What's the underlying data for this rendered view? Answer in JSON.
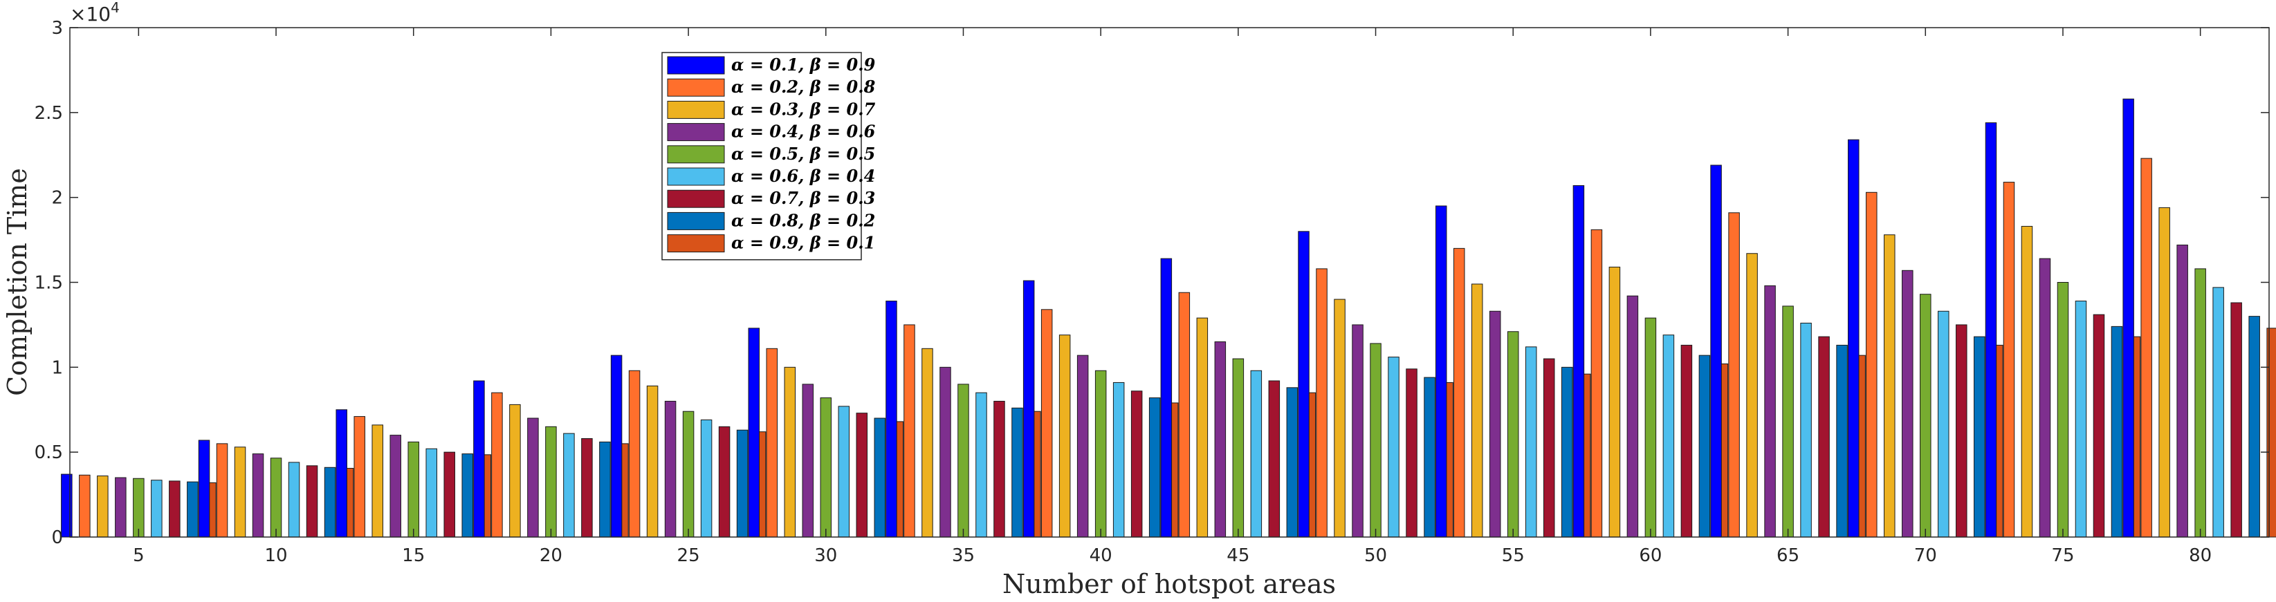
{
  "chart_data": {
    "type": "bar",
    "xlabel": "Number of hotspot areas",
    "ylabel": "Completion Time",
    "y_exponent_label": "×10",
    "y_exponent_power": "4",
    "y_scale_factor": 10000,
    "ylim": [
      0,
      30000
    ],
    "yticks": [
      0,
      5000,
      10000,
      15000,
      20000,
      25000,
      30000
    ],
    "ytick_labels": [
      "0",
      "0.5",
      "1",
      "1.5",
      "2",
      "2.5",
      "3"
    ],
    "categories": [
      "5",
      "10",
      "15",
      "20",
      "25",
      "30",
      "35",
      "40",
      "45",
      "50",
      "55",
      "60",
      "65",
      "70",
      "75",
      "80"
    ],
    "legend_position": "top-left",
    "grid": false,
    "series": [
      {
        "name": "α = 0.1, β = 0.9",
        "color": "#0000FF",
        "values": [
          3700,
          5700,
          7500,
          9200,
          10700,
          12300,
          13900,
          15100,
          16400,
          18000,
          19500,
          20700,
          21900,
          23400,
          24400,
          25800
        ]
      },
      {
        "name": "α = 0.2, β = 0.8",
        "color": "#FF6F2C",
        "values": [
          3650,
          5500,
          7100,
          8500,
          9800,
          11100,
          12500,
          13400,
          14400,
          15800,
          17000,
          18100,
          19100,
          20300,
          20900,
          22300
        ]
      },
      {
        "name": "α = 0.3, β = 0.7",
        "color": "#EDB120",
        "values": [
          3600,
          5300,
          6600,
          7800,
          8900,
          10000,
          11100,
          11900,
          12900,
          14000,
          14900,
          15900,
          16700,
          17800,
          18300,
          19400
        ]
      },
      {
        "name": "α = 0.4, β = 0.6",
        "color": "#7E2F8E",
        "values": [
          3500,
          4900,
          6000,
          7000,
          8000,
          9000,
          10000,
          10700,
          11500,
          12500,
          13300,
          14200,
          14800,
          15700,
          16400,
          17200
        ]
      },
      {
        "name": "α = 0.5, β = 0.5",
        "color": "#77AC30",
        "values": [
          3450,
          4650,
          5600,
          6500,
          7400,
          8200,
          9000,
          9800,
          10500,
          11400,
          12100,
          12900,
          13600,
          14300,
          15000,
          15800
        ]
      },
      {
        "name": "α = 0.6, β = 0.4",
        "color": "#4DBEEE",
        "values": [
          3350,
          4400,
          5200,
          6100,
          6900,
          7700,
          8500,
          9100,
          9800,
          10600,
          11200,
          11900,
          12600,
          13300,
          13900,
          14700
        ]
      },
      {
        "name": "α = 0.7, β = 0.3",
        "color": "#A2142F",
        "values": [
          3300,
          4200,
          5000,
          5800,
          6500,
          7300,
          8000,
          8600,
          9200,
          9900,
          10500,
          11300,
          11800,
          12500,
          13100,
          13800
        ]
      },
      {
        "name": "α = 0.8, β = 0.2",
        "color": "#0072BD",
        "values": [
          3250,
          4100,
          4900,
          5600,
          6300,
          7000,
          7600,
          8200,
          8800,
          9400,
          10000,
          10700,
          11300,
          11800,
          12400,
          13000
        ]
      },
      {
        "name": "α = 0.9, β = 0.1",
        "color": "#D95319",
        "values": [
          3200,
          4050,
          4850,
          5500,
          6200,
          6800,
          7400,
          7900,
          8500,
          9100,
          9600,
          10200,
          10700,
          11300,
          11800,
          12300
        ]
      }
    ]
  }
}
